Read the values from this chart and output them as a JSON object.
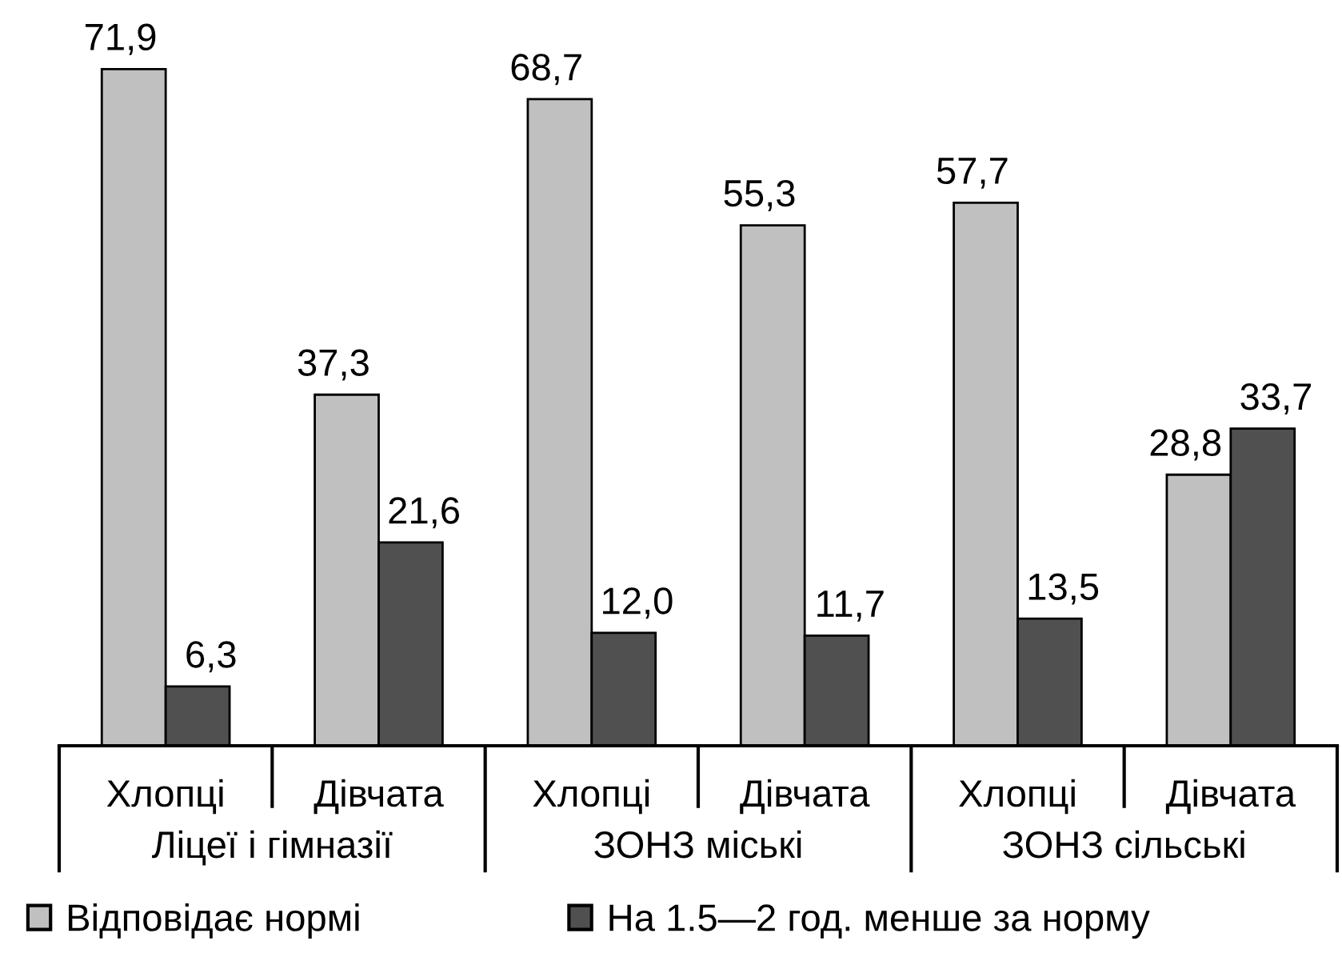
{
  "chart_data": {
    "type": "bar",
    "categories": [
      "Хлопці",
      "Дівчата",
      "Хлопці",
      "Дівчата",
      "Хлопці",
      "Дівчата"
    ],
    "series": [
      {
        "name": "Відповідає нормі",
        "color": "#c0c0c0",
        "values": [
          71.9,
          37.3,
          68.7,
          55.3,
          57.7,
          28.8
        ],
        "value_labels": [
          "71,9",
          "37,3",
          "68,7",
          "55,3",
          "57,7",
          "28,8"
        ]
      },
      {
        "name": "На 1.5—2 год. менше за норму",
        "color": "#505050",
        "values": [
          6.3,
          21.6,
          12.0,
          11.7,
          13.5,
          33.7
        ],
        "value_labels": [
          "6,3",
          "21,6",
          "12,0",
          "11,7",
          "13,5",
          "33,7"
        ]
      }
    ],
    "annotations": [
      "Ліцеї і гімназії",
      "ЗОНЗ міські",
      "ЗОНЗ сільські"
    ],
    "tick_labels": "x",
    "legend": "bottom",
    "grid": false
  }
}
